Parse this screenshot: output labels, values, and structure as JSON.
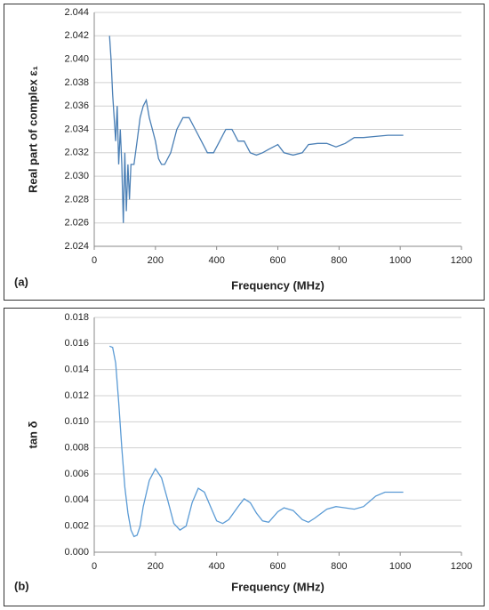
{
  "chart_data": [
    {
      "type": "line",
      "panel_label": "(a)",
      "xlabel": "Frequency (MHz)",
      "ylabel": "Real part of complex ε₁",
      "xlim": [
        0,
        1200
      ],
      "xticks": [
        0,
        200,
        400,
        600,
        800,
        1000,
        1200
      ],
      "ylim": [
        2.024,
        2.044
      ],
      "yticks": [
        {
          "value": 2.024,
          "label": "2.024"
        },
        {
          "value": 2.026,
          "label": "2.026"
        },
        {
          "value": 2.028,
          "label": "2.028"
        },
        {
          "value": 2.03,
          "label": "2.030"
        },
        {
          "value": 2.032,
          "label": "2.032"
        },
        {
          "value": 2.034,
          "label": "2.034"
        },
        {
          "value": 2.036,
          "label": "2.036"
        },
        {
          "value": 2.038,
          "label": "2.038"
        },
        {
          "value": 2.04,
          "label": "2.040"
        },
        {
          "value": 2.042,
          "label": "2.042"
        },
        {
          "value": 2.044,
          "label": "2.044"
        }
      ],
      "grid": true,
      "x": [
        50,
        55,
        60,
        65,
        70,
        75,
        80,
        85,
        90,
        95,
        100,
        105,
        110,
        115,
        120,
        130,
        140,
        150,
        160,
        170,
        180,
        190,
        200,
        210,
        220,
        230,
        250,
        270,
        290,
        310,
        330,
        350,
        370,
        390,
        410,
        430,
        450,
        470,
        490,
        510,
        530,
        550,
        570,
        600,
        620,
        650,
        680,
        700,
        730,
        760,
        790,
        820,
        850,
        880,
        920,
        960,
        1010
      ],
      "series": [
        {
          "color": "#4a7fb5",
          "values": [
            2.042,
            2.04,
            2.037,
            2.035,
            2.033,
            2.036,
            2.031,
            2.034,
            2.031,
            2.026,
            2.032,
            2.027,
            2.031,
            2.028,
            2.031,
            2.031,
            2.033,
            2.035,
            2.036,
            2.0365,
            2.035,
            2.034,
            2.033,
            2.0315,
            2.031,
            2.031,
            2.032,
            2.034,
            2.035,
            2.035,
            2.034,
            2.033,
            2.032,
            2.032,
            2.033,
            2.034,
            2.034,
            2.033,
            2.033,
            2.032,
            2.0318,
            2.032,
            2.0323,
            2.0327,
            2.032,
            2.0318,
            2.032,
            2.0327,
            2.0328,
            2.0328,
            2.0325,
            2.0328,
            2.0333,
            2.0333,
            2.0334,
            2.0335,
            2.0335
          ]
        }
      ]
    },
    {
      "type": "line",
      "panel_label": "(b)",
      "xlabel": "Frequency (MHz)",
      "ylabel": "tan δ",
      "xlim": [
        0,
        1200
      ],
      "xticks": [
        0,
        200,
        400,
        600,
        800,
        1000,
        1200
      ],
      "ylim": [
        0,
        0.018
      ],
      "yticks": [
        {
          "value": 0,
          "label": "0.000"
        },
        {
          "value": 0.002,
          "label": "0.002"
        },
        {
          "value": 0.004,
          "label": "0.004"
        },
        {
          "value": 0.006,
          "label": "0.006"
        },
        {
          "value": 0.008,
          "label": "0.008"
        },
        {
          "value": 0.01,
          "label": "0.010"
        },
        {
          "value": 0.012,
          "label": "0.012"
        },
        {
          "value": 0.014,
          "label": "0.014"
        },
        {
          "value": 0.016,
          "label": "0.016"
        },
        {
          "value": 0.018,
          "label": "0.018"
        }
      ],
      "grid": true,
      "x": [
        50,
        60,
        70,
        80,
        90,
        100,
        110,
        120,
        130,
        140,
        150,
        160,
        180,
        200,
        220,
        240,
        260,
        280,
        300,
        320,
        340,
        360,
        380,
        400,
        420,
        440,
        470,
        490,
        510,
        530,
        550,
        570,
        600,
        620,
        650,
        680,
        700,
        720,
        760,
        790,
        820,
        850,
        880,
        920,
        950,
        1010
      ],
      "series": [
        {
          "color": "#5b9bd5",
          "values": [
            0.0158,
            0.0157,
            0.0145,
            0.0115,
            0.008,
            0.005,
            0.003,
            0.0017,
            0.0012,
            0.0013,
            0.002,
            0.0035,
            0.0055,
            0.0064,
            0.0057,
            0.004,
            0.0022,
            0.0017,
            0.002,
            0.0038,
            0.0049,
            0.0046,
            0.0035,
            0.0024,
            0.0022,
            0.0025,
            0.0035,
            0.0041,
            0.0038,
            0.003,
            0.0024,
            0.0023,
            0.0031,
            0.0034,
            0.0032,
            0.0025,
            0.0023,
            0.0026,
            0.0033,
            0.0035,
            0.0034,
            0.0033,
            0.0035,
            0.0043,
            0.0046,
            0.0046
          ]
        }
      ]
    }
  ]
}
